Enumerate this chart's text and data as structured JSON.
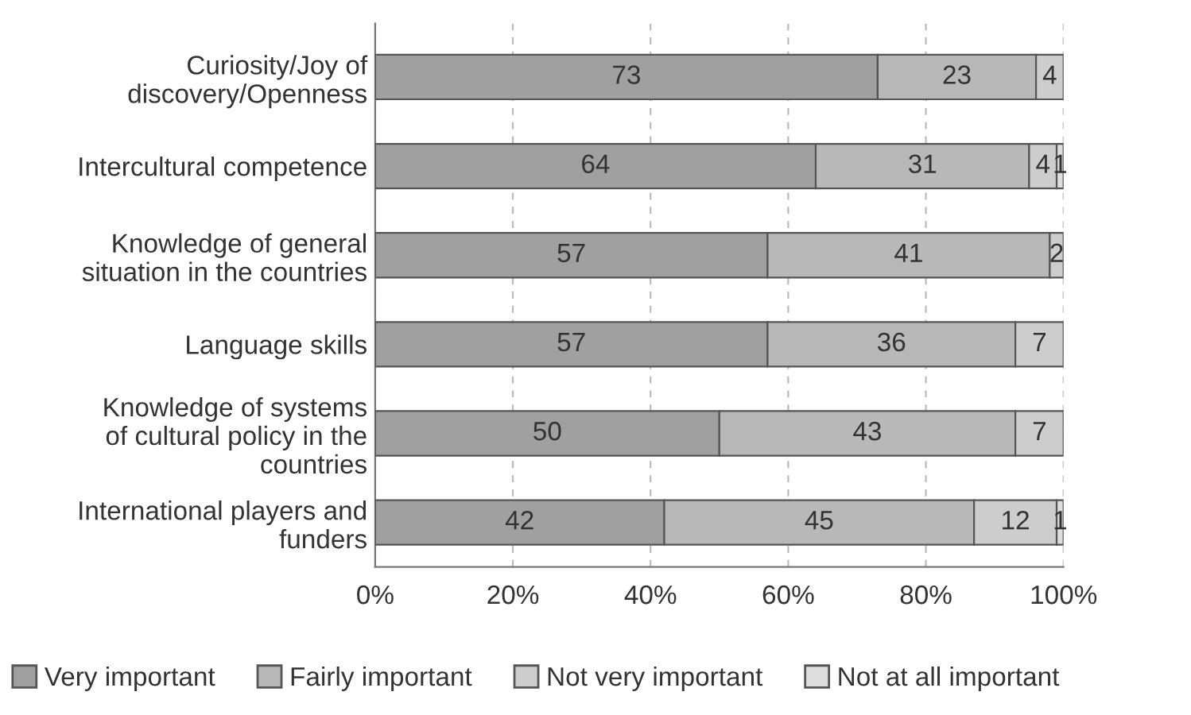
{
  "chart_data": {
    "type": "bar",
    "orientation": "horizontal",
    "stacked": true,
    "categories": [
      "Curiosity/Joy of\ndiscovery/Openness",
      "Intercultural competence",
      "Knowledge of general\nsituation in the countries",
      "Language skills",
      "Knowledge of systems\nof cultural policy in the\ncountries",
      "International players and\nfunders"
    ],
    "series": [
      {
        "name": "Very important",
        "color": "#a0a0a0",
        "values": [
          73,
          64,
          57,
          57,
          50,
          42
        ]
      },
      {
        "name": "Fairly important",
        "color": "#b8b8b8",
        "values": [
          23,
          31,
          41,
          36,
          43,
          45
        ]
      },
      {
        "name": "Not very important",
        "color": "#cdcdcd",
        "values": [
          4,
          4,
          2,
          7,
          7,
          12
        ]
      },
      {
        "name": "Not at all important",
        "color": "#dedede",
        "values": [
          null,
          1,
          null,
          null,
          null,
          1
        ]
      }
    ],
    "xlim": [
      0,
      100
    ],
    "xticks": [
      {
        "value": 0,
        "label": "0%"
      },
      {
        "value": 20,
        "label": "20%"
      },
      {
        "value": 40,
        "label": "40%"
      },
      {
        "value": 60,
        "label": "60%"
      },
      {
        "value": 80,
        "label": "80%"
      },
      {
        "value": 100,
        "label": "100%"
      }
    ],
    "grid": "x",
    "legend": "bottom",
    "data_labels": true
  }
}
